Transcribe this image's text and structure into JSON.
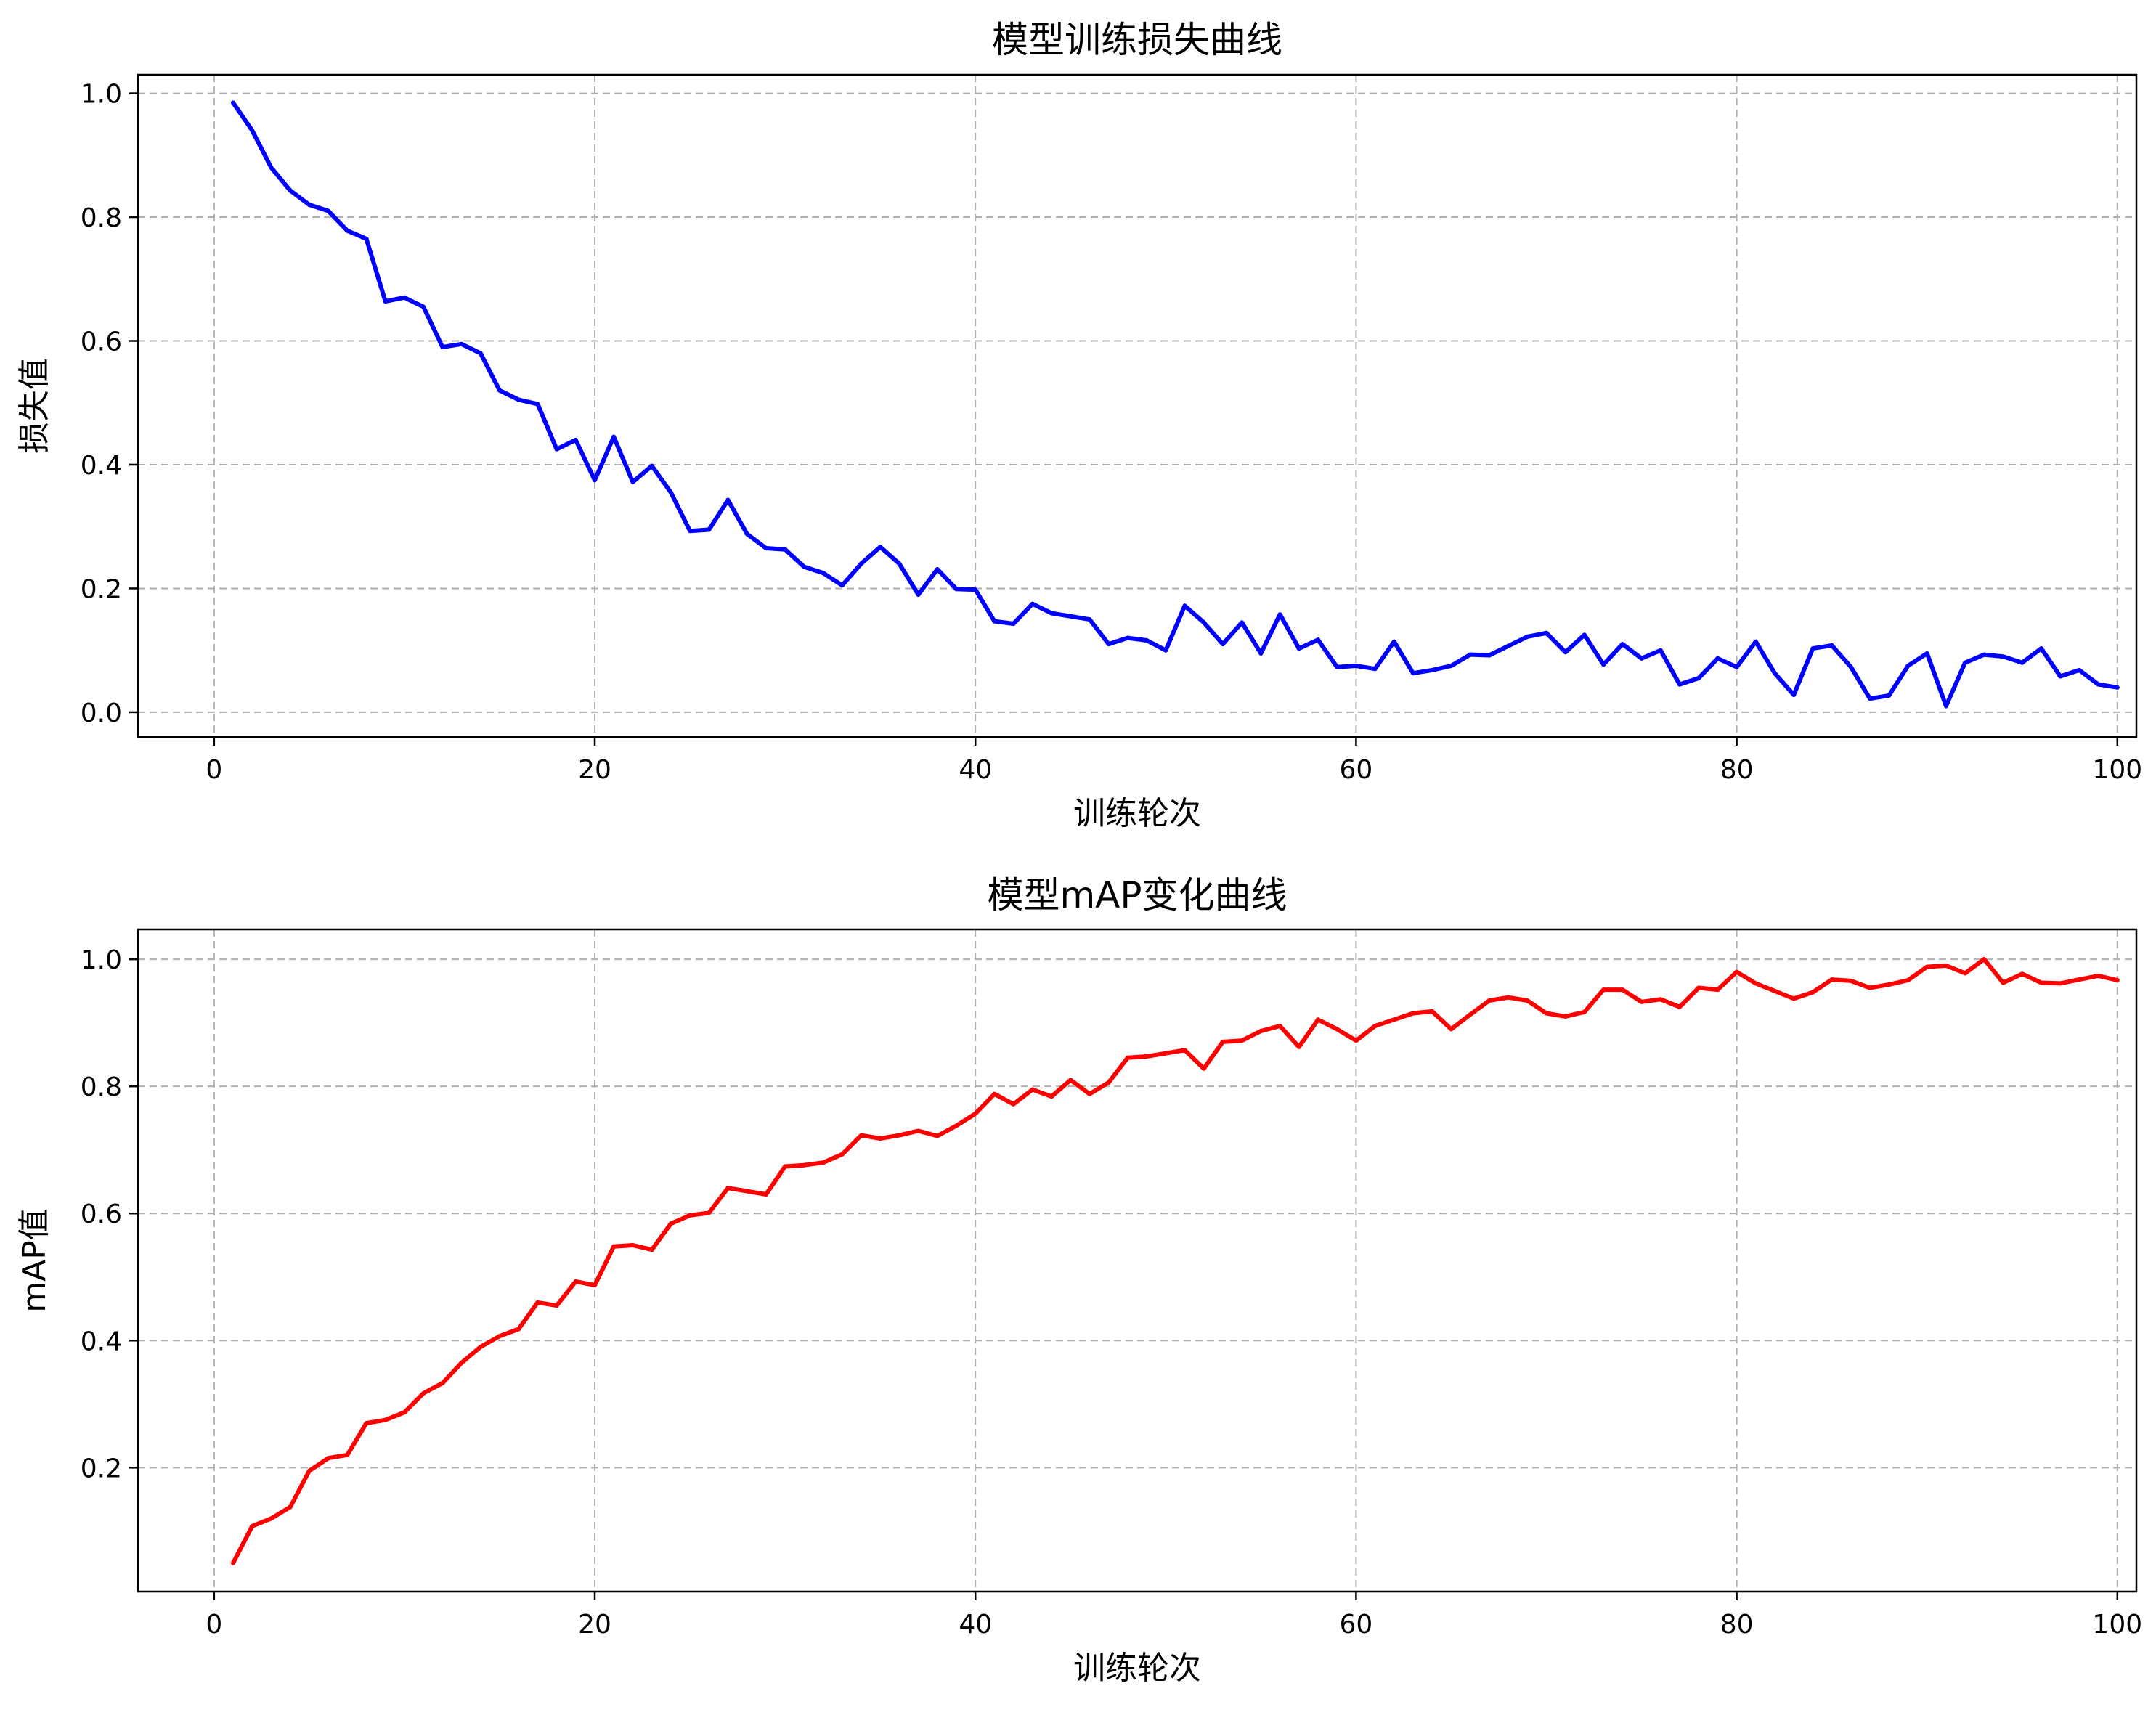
{
  "chart_data": [
    {
      "type": "line",
      "title": "模型训练损失曲线",
      "xlabel": "训练轮次",
      "ylabel": "损失值",
      "xlim": [
        -4,
        101
      ],
      "ylim": [
        -0.04,
        1.03
      ],
      "xticks": [
        0,
        20,
        40,
        60,
        80,
        100
      ],
      "yticks": [
        0.0,
        0.2,
        0.4,
        0.6,
        0.8,
        1.0
      ],
      "grid": true,
      "series": [
        {
          "color": "#0000ff",
          "x": [
            1,
            2,
            3,
            4,
            5,
            6,
            7,
            8,
            9,
            10,
            11,
            12,
            13,
            14,
            15,
            16,
            17,
            18,
            19,
            20,
            21,
            22,
            23,
            24,
            25,
            26,
            27,
            28,
            29,
            30,
            31,
            32,
            33,
            34,
            35,
            36,
            37,
            38,
            39,
            40,
            41,
            42,
            43,
            44,
            45,
            46,
            47,
            48,
            49,
            50,
            51,
            52,
            53,
            54,
            55,
            56,
            57,
            58,
            59,
            60,
            61,
            62,
            63,
            64,
            65,
            66,
            67,
            68,
            69,
            70,
            71,
            72,
            73,
            74,
            75,
            76,
            77,
            78,
            79,
            80,
            81,
            82,
            83,
            84,
            85,
            86,
            87,
            88,
            89,
            90,
            91,
            92,
            93,
            94,
            95,
            96,
            97,
            98,
            99,
            100
          ],
          "values": [
            0.985,
            0.94,
            0.88,
            0.843,
            0.82,
            0.81,
            0.778,
            0.765,
            0.664,
            0.67,
            0.655,
            0.59,
            0.595,
            0.58,
            0.52,
            0.505,
            0.498,
            0.425,
            0.44,
            0.375,
            0.445,
            0.372,
            0.398,
            0.355,
            0.293,
            0.295,
            0.343,
            0.288,
            0.265,
            0.263,
            0.235,
            0.225,
            0.205,
            0.24,
            0.267,
            0.24,
            0.19,
            0.231,
            0.199,
            0.198,
            0.147,
            0.143,
            0.175,
            0.16,
            0.155,
            0.15,
            0.11,
            0.12,
            0.116,
            0.1,
            0.172,
            0.145,
            0.11,
            0.145,
            0.095,
            0.158,
            0.103,
            0.117,
            0.073,
            0.075,
            0.07,
            0.114,
            0.063,
            0.068,
            0.075,
            0.093,
            0.092,
            0.107,
            0.122,
            0.128,
            0.097,
            0.125,
            0.077,
            0.11,
            0.087,
            0.1,
            0.045,
            0.055,
            0.087,
            0.073,
            0.114,
            0.063,
            0.028,
            0.103,
            0.108,
            0.073,
            0.022,
            0.027,
            0.075,
            0.095,
            0.01,
            0.08,
            0.093,
            0.09,
            0.08,
            0.103,
            0.058,
            0.068,
            0.045,
            0.04
          ]
        }
      ]
    },
    {
      "type": "line",
      "title": "模型mAP变化曲线",
      "xlabel": "训练轮次",
      "ylabel": "mAP值",
      "xlim": [
        -4,
        101
      ],
      "ylim": [
        0.005,
        1.047
      ],
      "xticks": [
        0,
        20,
        40,
        60,
        80,
        100
      ],
      "yticks": [
        0.2,
        0.4,
        0.6,
        0.8,
        1.0
      ],
      "grid": true,
      "series": [
        {
          "color": "#ff0000",
          "x": [
            1,
            2,
            3,
            4,
            5,
            6,
            7,
            8,
            9,
            10,
            11,
            12,
            13,
            14,
            15,
            16,
            17,
            18,
            19,
            20,
            21,
            22,
            23,
            24,
            25,
            26,
            27,
            28,
            29,
            30,
            31,
            32,
            33,
            34,
            35,
            36,
            37,
            38,
            39,
            40,
            41,
            42,
            43,
            44,
            45,
            46,
            47,
            48,
            49,
            50,
            51,
            52,
            53,
            54,
            55,
            56,
            57,
            58,
            59,
            60,
            61,
            62,
            63,
            64,
            65,
            66,
            67,
            68,
            69,
            70,
            71,
            72,
            73,
            74,
            75,
            76,
            77,
            78,
            79,
            80,
            81,
            82,
            83,
            84,
            85,
            86,
            87,
            88,
            89,
            90,
            91,
            92,
            93,
            94,
            95,
            96,
            97,
            98,
            99,
            100
          ],
          "values": [
            0.05,
            0.108,
            0.12,
            0.138,
            0.195,
            0.215,
            0.22,
            0.27,
            0.275,
            0.287,
            0.317,
            0.333,
            0.365,
            0.39,
            0.407,
            0.418,
            0.46,
            0.455,
            0.493,
            0.487,
            0.548,
            0.55,
            0.543,
            0.584,
            0.597,
            0.601,
            0.64,
            0.635,
            0.63,
            0.674,
            0.676,
            0.68,
            0.693,
            0.723,
            0.718,
            0.723,
            0.73,
            0.722,
            0.738,
            0.757,
            0.788,
            0.772,
            0.795,
            0.784,
            0.81,
            0.788,
            0.806,
            0.845,
            0.847,
            0.852,
            0.857,
            0.828,
            0.87,
            0.872,
            0.887,
            0.895,
            0.862,
            0.905,
            0.89,
            0.872,
            0.895,
            0.905,
            0.915,
            0.918,
            0.89,
            0.913,
            0.935,
            0.94,
            0.935,
            0.915,
            0.91,
            0.917,
            0.952,
            0.952,
            0.933,
            0.937,
            0.925,
            0.955,
            0.952,
            0.98,
            0.962,
            0.95,
            0.938,
            0.948,
            0.968,
            0.966,
            0.955,
            0.96,
            0.967,
            0.988,
            0.99,
            0.978,
            1.0,
            0.963,
            0.977,
            0.963,
            0.962,
            0.968,
            0.974,
            0.967
          ]
        }
      ]
    }
  ]
}
